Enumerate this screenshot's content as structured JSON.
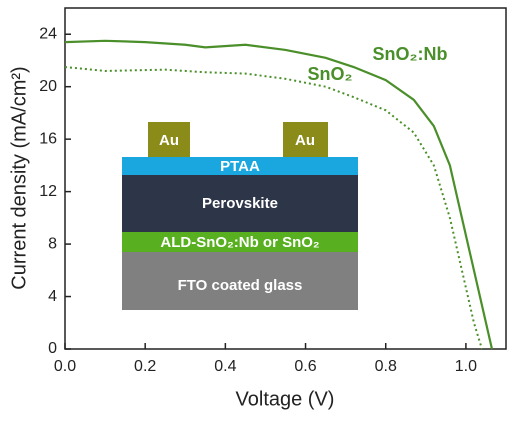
{
  "chart_data": {
    "type": "line",
    "x_label": "Voltage (V)",
    "y_label": "Current density (mA/cm²)",
    "xlim": [
      0,
      1.1
    ],
    "ylim": [
      0,
      26
    ],
    "xticks": [
      {
        "value": 0,
        "label": "0.0"
      },
      0.2,
      0.4,
      0.6,
      0.8,
      {
        "value": 1,
        "label": "1.0"
      }
    ],
    "yticks": [
      0,
      4,
      8,
      12,
      16,
      20,
      24
    ],
    "series": [
      {
        "name": "SnO₂:Nb",
        "color": "#4a8f2a",
        "style": "solid",
        "x": [
          0,
          0.1,
          0.2,
          0.3,
          0.35,
          0.45,
          0.55,
          0.65,
          0.72,
          0.8,
          0.87,
          0.92,
          0.96,
          0.99,
          1.02,
          1.05,
          1.065
        ],
        "values": [
          23.4,
          23.5,
          23.4,
          23.2,
          23.0,
          23.2,
          22.8,
          22.2,
          21.5,
          20.5,
          19.0,
          17.0,
          14.0,
          10.0,
          6.0,
          2.0,
          0
        ]
      },
      {
        "name": "SnO₂",
        "color": "#4a8f2a",
        "style": "dotted",
        "x": [
          0,
          0.1,
          0.25,
          0.35,
          0.45,
          0.55,
          0.65,
          0.72,
          0.8,
          0.87,
          0.92,
          0.96,
          0.99,
          1.02,
          1.04
        ],
        "values": [
          21.5,
          21.2,
          21.3,
          21.1,
          21.0,
          20.6,
          20.0,
          19.2,
          18.2,
          16.5,
          14.0,
          10.0,
          6.0,
          2.0,
          0
        ]
      }
    ],
    "inset": {
      "electrodes": [
        "Au",
        "Au"
      ],
      "layers": [
        "PTAA",
        "Perovskite",
        "ALD-SnO₂:Nb or SnO₂",
        "FTO coated glass"
      ]
    }
  }
}
